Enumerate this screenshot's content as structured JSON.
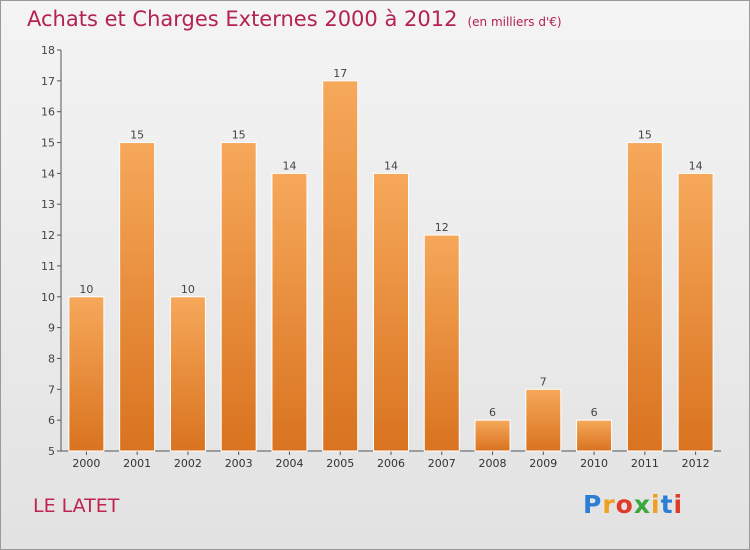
{
  "title": "Achats et Charges Externes 2000 à 2012",
  "unit": "(en milliers d'€)",
  "place": "LE LATET",
  "logo": {
    "p": "P",
    "r": "r",
    "o": "o",
    "x": "x",
    "i": "i",
    "t": "t",
    "i2": "i"
  },
  "colors": {
    "bar_top": "#f6a85a",
    "bar_bottom": "#d9731f",
    "title": "#b5224f"
  },
  "chart_data": {
    "type": "bar",
    "title": "Achats et Charges Externes 2000 à 2012",
    "ylabel": "(en milliers d'€)",
    "categories": [
      "2000",
      "2001",
      "2002",
      "2003",
      "2004",
      "2005",
      "2006",
      "2007",
      "2008",
      "2009",
      "2010",
      "2011",
      "2012"
    ],
    "values": [
      10,
      15,
      10,
      15,
      14,
      17,
      14,
      12,
      6,
      7,
      6,
      15,
      14
    ],
    "ylim": [
      5,
      18
    ],
    "yticks": [
      5,
      6,
      7,
      8,
      9,
      10,
      11,
      12,
      13,
      14,
      15,
      16,
      17,
      18
    ],
    "grid": false,
    "data_labels": true
  }
}
